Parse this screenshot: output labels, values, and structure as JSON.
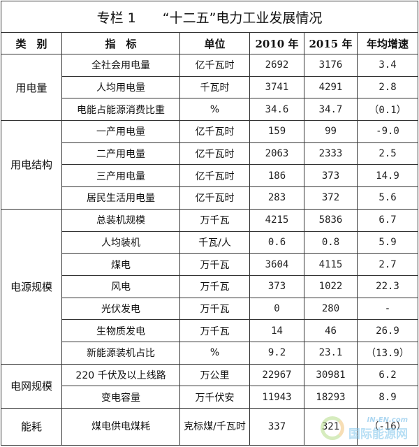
{
  "title": "专栏 1　　“十二五”电力工业发展情况",
  "headers": [
    "类　别",
    "指　标",
    "单位",
    "2010 年",
    "2015 年",
    "年均增速"
  ],
  "groups": [
    {
      "category": "用电量",
      "rows": [
        {
          "indicator": "全社会用电量",
          "unit": "亿千瓦时",
          "y2010": "2692",
          "y2015": "3176",
          "growth": "3.4"
        },
        {
          "indicator": "人均用电量",
          "unit": "千瓦时",
          "y2010": "3741",
          "y2015": "4291",
          "growth": "2.8"
        },
        {
          "indicator": "电能占能源消费比重",
          "unit": "%",
          "y2010": "34.6",
          "y2015": "34.7",
          "growth": "（0.1）"
        }
      ]
    },
    {
      "category": "用电结构",
      "rows": [
        {
          "indicator": "一产用电量",
          "unit": "亿千瓦时",
          "y2010": "159",
          "y2015": "99",
          "growth": "-9.0"
        },
        {
          "indicator": "二产用电量",
          "unit": "亿千瓦时",
          "y2010": "2063",
          "y2015": "2333",
          "growth": "2.5"
        },
        {
          "indicator": "三产用电量",
          "unit": "亿千瓦时",
          "y2010": "186",
          "y2015": "373",
          "growth": "14.9"
        },
        {
          "indicator": "居民生活用电量",
          "unit": "亿千瓦时",
          "y2010": "283",
          "y2015": "372",
          "growth": "5.6"
        }
      ]
    },
    {
      "category": "电源规模",
      "rows": [
        {
          "indicator": "总装机规模",
          "unit": "万千瓦",
          "y2010": "4215",
          "y2015": "5836",
          "growth": "6.7"
        },
        {
          "indicator": "人均装机",
          "unit": "千瓦/人",
          "y2010": "0.6",
          "y2015": "0.8",
          "growth": "5.9"
        },
        {
          "indicator": "煤电",
          "unit": "万千瓦",
          "y2010": "3604",
          "y2015": "4115",
          "growth": "2.7"
        },
        {
          "indicator": "风电",
          "unit": "万千瓦",
          "y2010": "373",
          "y2015": "1022",
          "growth": "22.3"
        },
        {
          "indicator": "光伏发电",
          "unit": "万千瓦",
          "y2010": "0",
          "y2015": "280",
          "growth": "-"
        },
        {
          "indicator": "生物质发电",
          "unit": "万千瓦",
          "y2010": "14",
          "y2015": "46",
          "growth": "26.9"
        },
        {
          "indicator": "新能源装机占比",
          "unit": "%",
          "y2010": "9.2",
          "y2015": "23.1",
          "growth": "（13.9）"
        }
      ]
    },
    {
      "category": "电网规模",
      "rows": [
        {
          "indicator": "220 千伏及以上线路",
          "unit": "万公里",
          "y2010": "22967",
          "y2015": "30981",
          "growth": "6.2"
        },
        {
          "indicator": "变电容量",
          "unit": "万千伏安",
          "y2010": "11943",
          "y2015": "18293",
          "growth": "8.9"
        }
      ]
    },
    {
      "category": "能耗",
      "rows": [
        {
          "indicator": "煤电供电煤耗",
          "unit": "克标煤/千瓦时",
          "y2010": "337",
          "y2015": "321",
          "growth": "（-16）"
        }
      ]
    }
  ],
  "watermark": {
    "line1": "IN-EN.com",
    "line2": "国际能源网"
  }
}
